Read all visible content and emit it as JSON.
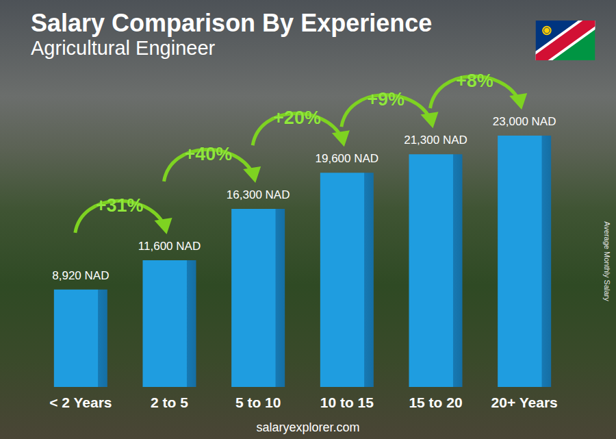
{
  "chart_data": {
    "type": "bar",
    "title": "Salary Comparison By Experience",
    "subtitle": "Agricultural Engineer",
    "y_label": "Average Monthly Salary",
    "categories": [
      "< 2 Years",
      "2 to 5",
      "5 to 10",
      "10 to 15",
      "15 to 20",
      "20+ Years"
    ],
    "values": [
      8920,
      11600,
      16300,
      19600,
      21300,
      23000
    ],
    "value_labels": [
      "8,920 NAD",
      "11,600 NAD",
      "16,300 NAD",
      "19,600 NAD",
      "21,300 NAD",
      "23,000 NAD"
    ],
    "annotations": [
      {
        "text": "+31%",
        "from": "< 2 Years",
        "to": "2 to 5"
      },
      {
        "text": "+40%",
        "from": "2 to 5",
        "to": "5 to 10"
      },
      {
        "text": "+20%",
        "from": "5 to 10",
        "to": "10 to 15"
      },
      {
        "text": "+9%",
        "from": "10 to 15",
        "to": "15 to 20"
      },
      {
        "text": "+8%",
        "from": "15 to 20",
        "to": "20+ Years"
      }
    ],
    "footer": "salaryexplorer.com",
    "color": "#1f9de0",
    "ylim": [
      0,
      23000
    ],
    "grid": false,
    "data_labels": true,
    "tick_labels": "x"
  }
}
